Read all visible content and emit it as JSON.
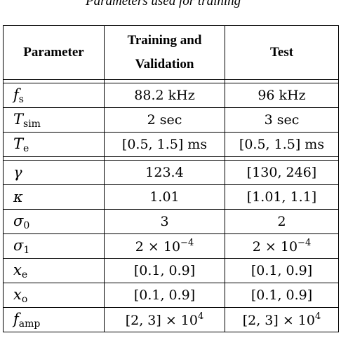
{
  "caption": "Parameters used for training",
  "table": {
    "headers": [
      "Parameter",
      "Training and Validation",
      "Test"
    ],
    "rows": [
      {
        "param": "f",
        "sub": "s",
        "train": "88.2 kHz",
        "test": "96 kHz"
      },
      {
        "param": "T",
        "sub": "sim",
        "train": "2 sec",
        "test": "3 sec"
      },
      {
        "param": "T",
        "sub": "e",
        "train": "[0.5, 1.5] ms",
        "test": "[0.5, 1.5] ms"
      },
      {
        "param": "γ",
        "sub": "",
        "train": "123.4",
        "test": "[130, 246]"
      },
      {
        "param": "κ",
        "sub": "",
        "train": "1.01",
        "test": "[1.01, 1.1]"
      },
      {
        "param": "σ",
        "sub": "0",
        "train": "3",
        "test": "2"
      },
      {
        "param": "σ",
        "sub": "1",
        "train": "2 × 10",
        "train_exp": "−4",
        "test": "2 × 10",
        "test_exp": "−4"
      },
      {
        "param": "x",
        "sub": "e",
        "train": "[0.1, 0.9]",
        "test": "[0.1, 0.9]"
      },
      {
        "param": "x",
        "sub": "o",
        "train": "[0.1, 0.9]",
        "test": "[0.1, 0.9]"
      },
      {
        "param": "f",
        "sub": "amp",
        "train": "[2, 3] × 10",
        "train_exp": "4",
        "test": "[2, 3] × 10",
        "test_exp": "4"
      }
    ]
  }
}
